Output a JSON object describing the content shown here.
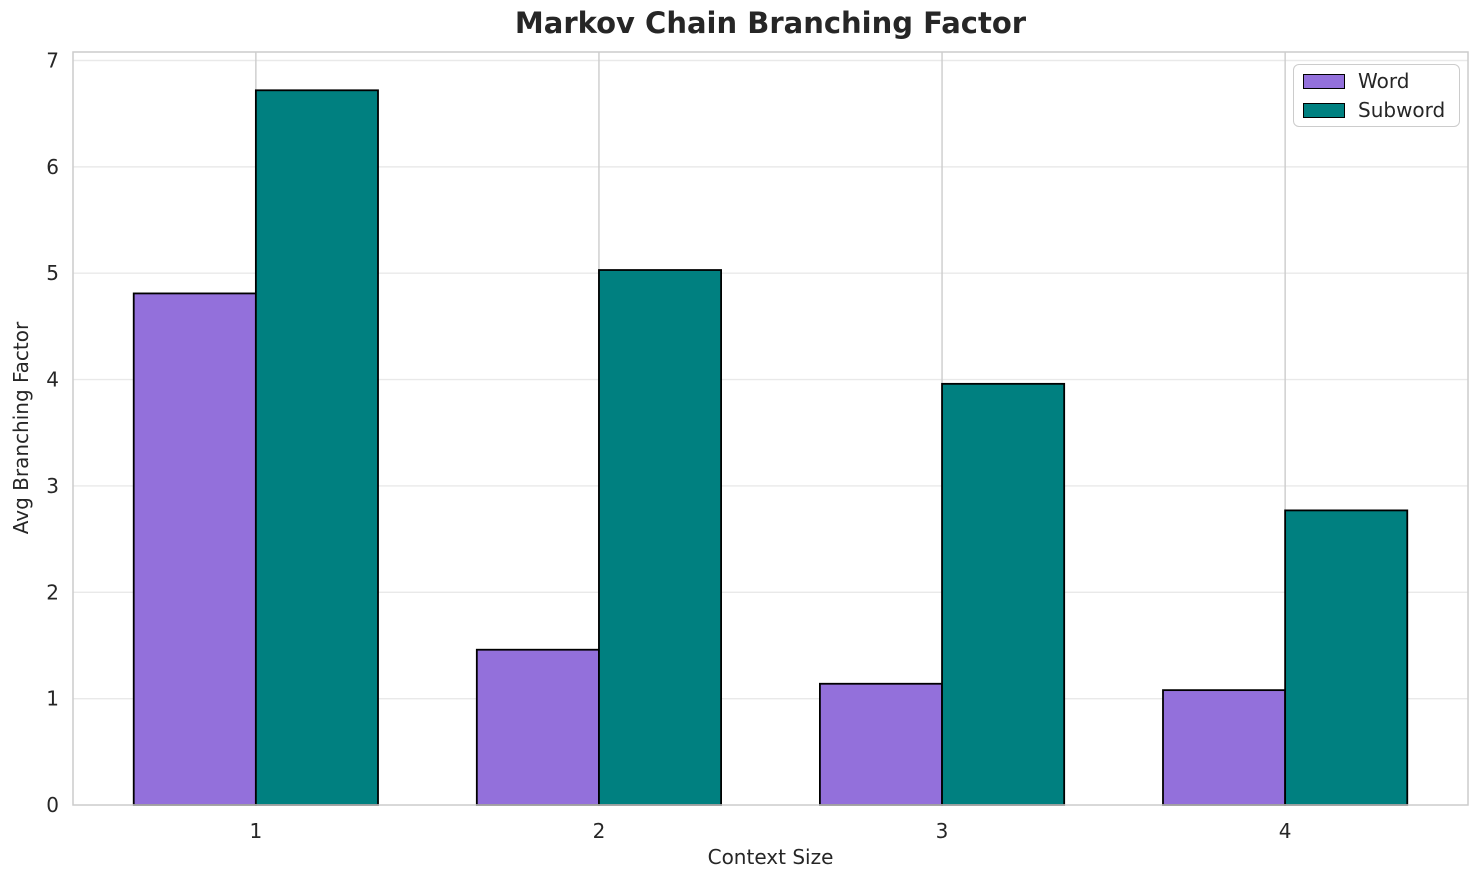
{
  "chart_data": {
    "type": "bar",
    "title": "Markov Chain Branching Factor",
    "xlabel": "Context Size",
    "ylabel": "Avg Branching Factor",
    "categories": [
      "1",
      "2",
      "3",
      "4"
    ],
    "series": [
      {
        "name": "Word",
        "color": "#9370DB",
        "values": [
          4.81,
          1.46,
          1.14,
          1.08
        ]
      },
      {
        "name": "Subword",
        "color": "#008080",
        "values": [
          6.72,
          5.03,
          3.96,
          2.77
        ]
      }
    ],
    "yticks": [
      0,
      1,
      2,
      3,
      4,
      5,
      6,
      7
    ],
    "ylim": [
      0,
      7.08
    ],
    "grid": true,
    "legend_position": "upper right",
    "bar_edge_color": "#000000",
    "text_color": "#262626",
    "h_grid_color": "#e9e9e9",
    "v_grid_color": "#cccccc",
    "spine_color": "#cccccc"
  }
}
